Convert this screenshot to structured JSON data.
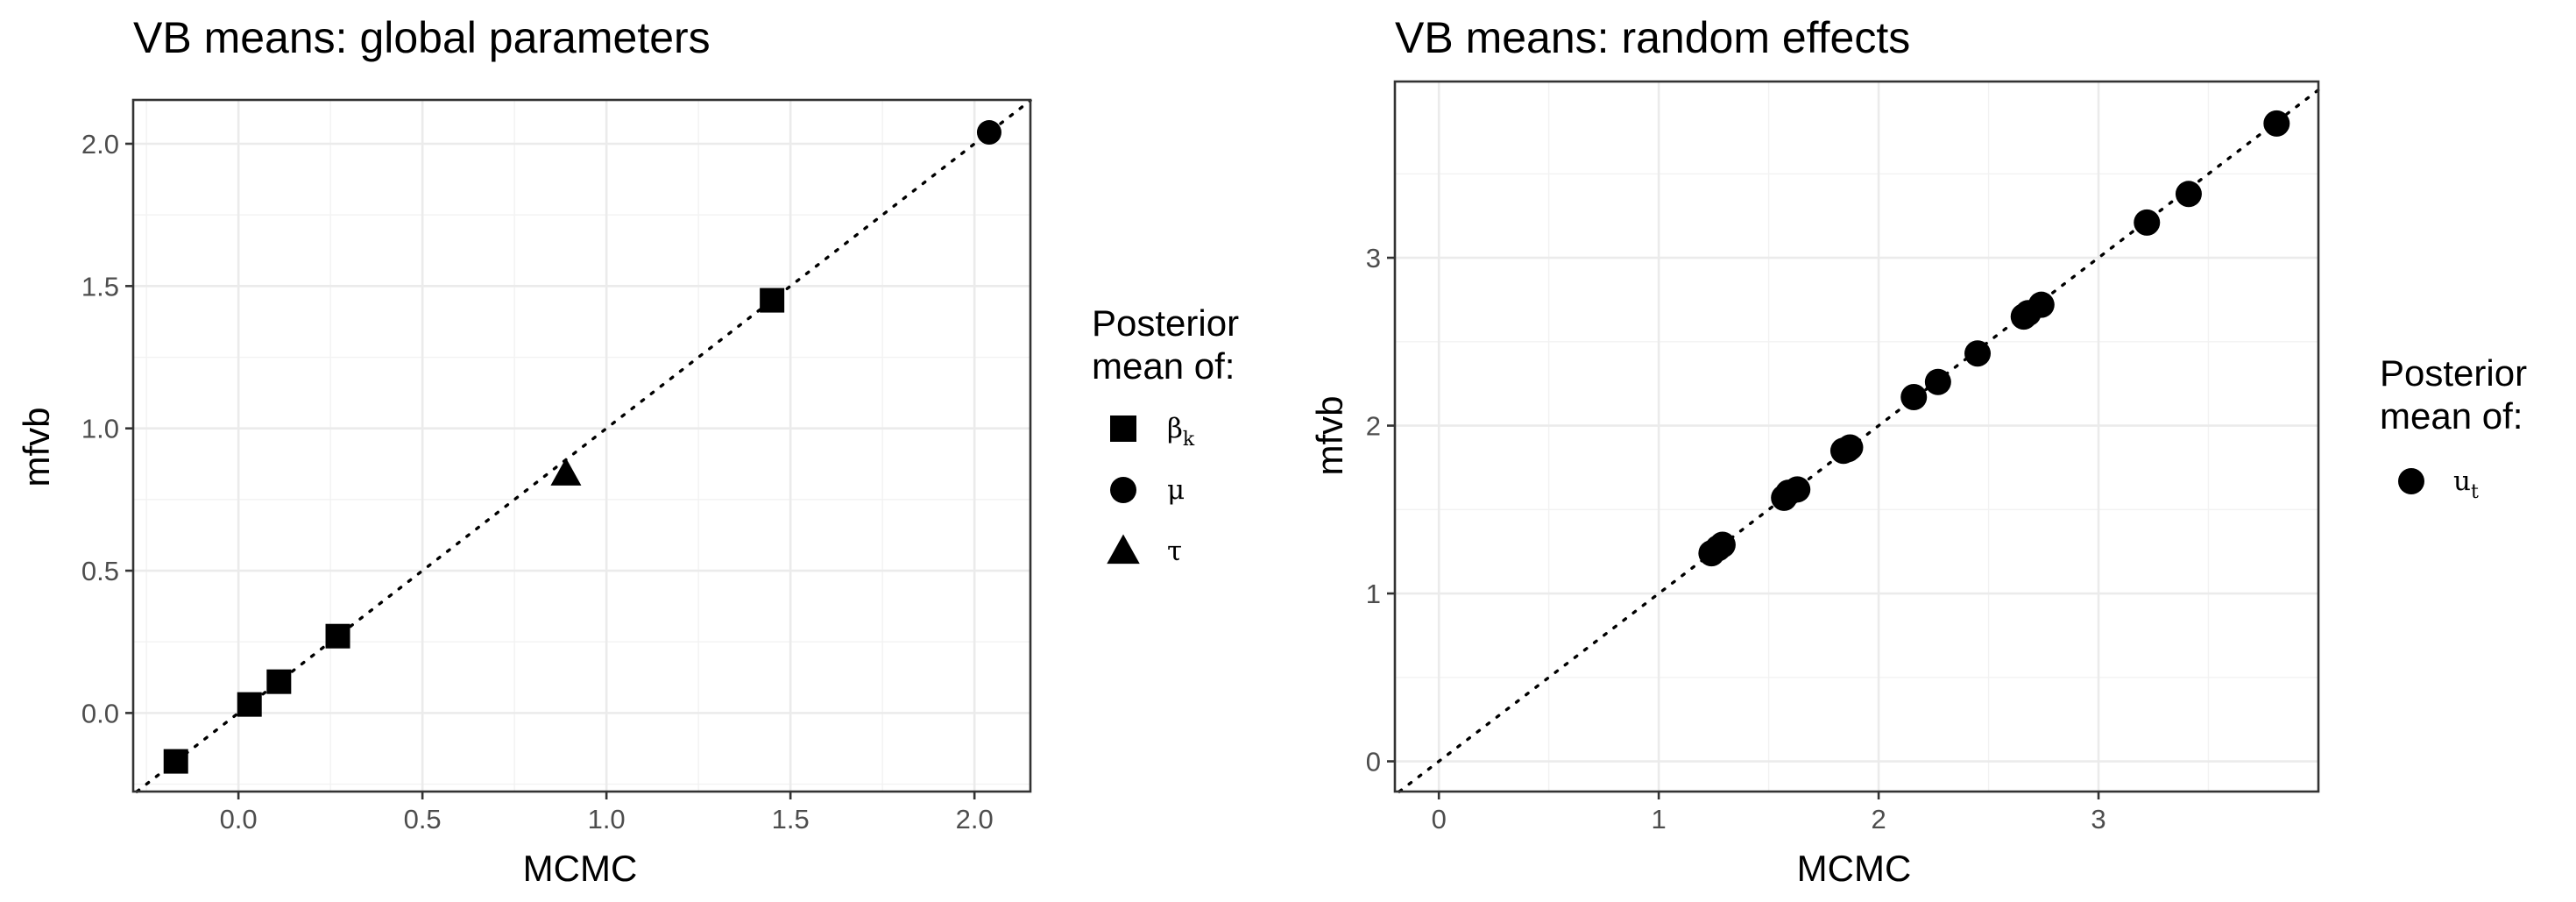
{
  "chart_data": [
    {
      "type": "scatter",
      "title": "VB means: global parameters",
      "xlabel": "MCMC",
      "ylabel": "mfvb",
      "xlim": [
        -0.286,
        2.152
      ],
      "ylim": [
        -0.276,
        2.154
      ],
      "x_ticks": [
        0.0,
        0.5,
        1.0,
        1.5,
        2.0
      ],
      "x_tick_labels": [
        "0.0",
        "0.5",
        "1.0",
        "1.5",
        "2.0"
      ],
      "y_ticks": [
        0.0,
        0.5,
        1.0,
        1.5,
        2.0
      ],
      "y_tick_labels": [
        "0.0",
        "0.5",
        "1.0",
        "1.5",
        "2.0"
      ],
      "grid": true,
      "reference_line": "y = x",
      "legend": {
        "title": [
          "Posterior",
          "mean of:"
        ],
        "position": "right",
        "entries": [
          {
            "shape": "square",
            "symbol": "β",
            "subscript": "k"
          },
          {
            "shape": "circle",
            "symbol": "μ",
            "subscript": ""
          },
          {
            "shape": "triangle",
            "symbol": "τ",
            "subscript": ""
          }
        ]
      },
      "series": [
        {
          "shape": "square",
          "x": [
            -0.17,
            0.03,
            0.11,
            0.27,
            1.45
          ],
          "y": [
            -0.17,
            0.03,
            0.11,
            0.27,
            1.45
          ]
        },
        {
          "shape": "circle",
          "x": [
            2.04
          ],
          "y": [
            2.04
          ]
        },
        {
          "shape": "triangle",
          "x": [
            0.89
          ],
          "y": [
            0.84
          ]
        }
      ]
    },
    {
      "type": "scatter",
      "title": "VB means: random effects",
      "xlabel": "MCMC",
      "ylabel": "mfvb",
      "xlim": [
        -0.2,
        4.0
      ],
      "ylim": [
        -0.18,
        4.05
      ],
      "x_ticks": [
        0,
        1,
        2,
        3
      ],
      "x_tick_labels": [
        "0",
        "1",
        "2",
        "3"
      ],
      "y_ticks": [
        0,
        1,
        2,
        3
      ],
      "y_tick_labels": [
        "0",
        "1",
        "2",
        "3"
      ],
      "grid": true,
      "reference_line": "y = x",
      "legend": {
        "title": [
          "Posterior",
          "mean of:"
        ],
        "position": "right",
        "entries": [
          {
            "shape": "circle",
            "symbol": "u",
            "subscript": "t"
          }
        ]
      },
      "series": [
        {
          "shape": "circle",
          "x": [
            1.24,
            1.27,
            1.29,
            1.57,
            1.59,
            1.63,
            1.84,
            1.86,
            1.87,
            2.16,
            2.27,
            2.45,
            2.66,
            2.68,
            2.74,
            3.22,
            3.41,
            3.81
          ],
          "y": [
            1.24,
            1.27,
            1.29,
            1.57,
            1.6,
            1.62,
            1.85,
            1.86,
            1.87,
            2.17,
            2.26,
            2.43,
            2.65,
            2.67,
            2.72,
            3.21,
            3.38,
            3.8
          ]
        }
      ]
    }
  ]
}
